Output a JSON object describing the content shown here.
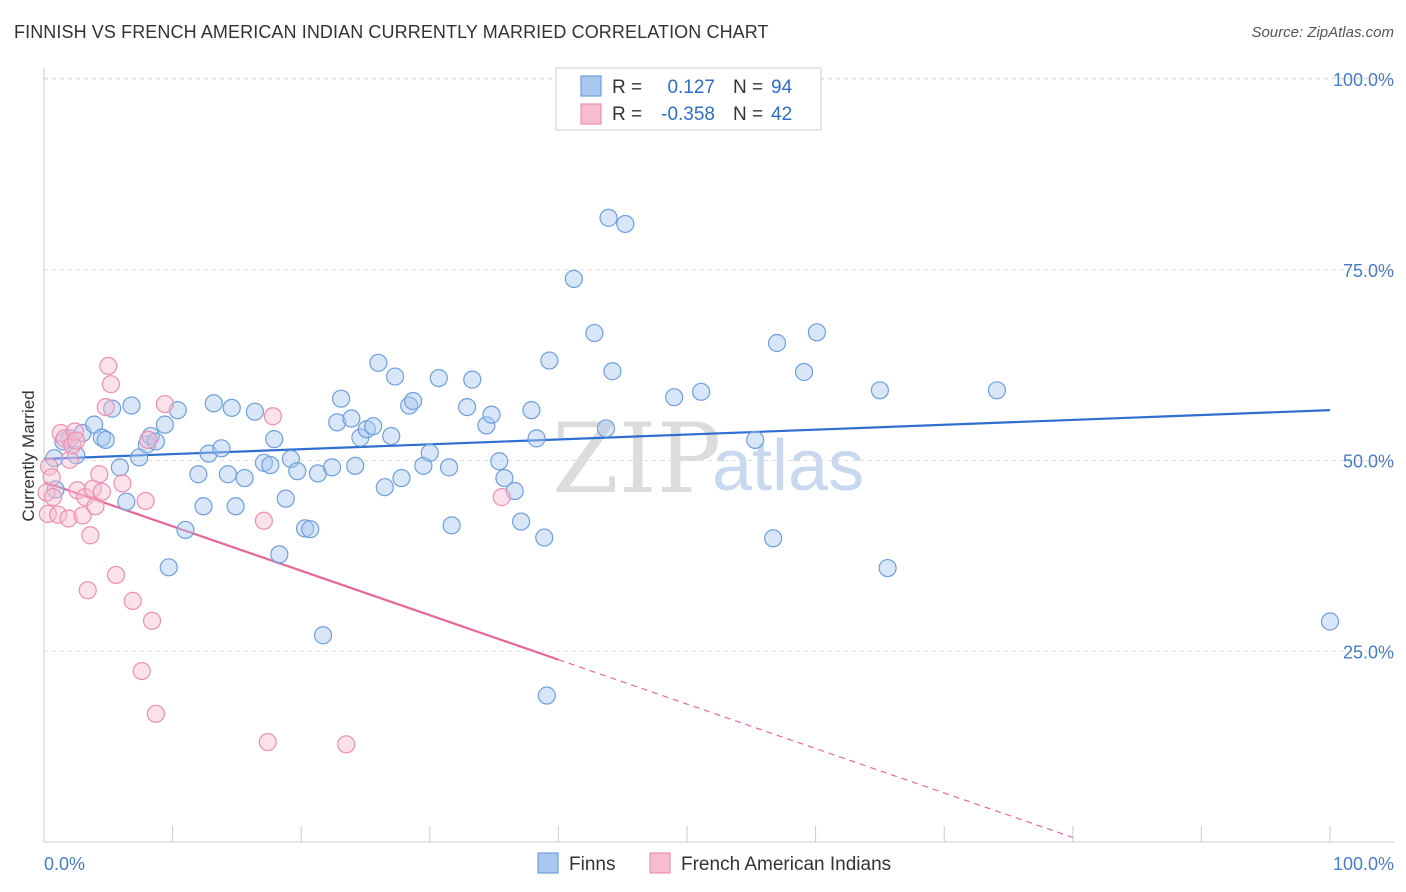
{
  "title": "FINNISH VS FRENCH AMERICAN INDIAN CURRENTLY MARRIED CORRELATION CHART",
  "source": "Source: ZipAtlas.com",
  "watermark": {
    "part1": "ZIP",
    "part2": "atlas"
  },
  "legend_box": {
    "rows": [
      {
        "r_label": "R =",
        "r_value": "0.127",
        "n_label": "N =",
        "n_value": "94"
      },
      {
        "r_label": "R =",
        "r_value": "-0.358",
        "n_label": "N =",
        "n_value": "42"
      }
    ]
  },
  "chart_data": {
    "type": "scatter",
    "xlabel": "",
    "ylabel": "Currently Married",
    "xlim": [
      0,
      100
    ],
    "ylim": [
      0,
      105
    ],
    "x_tick_labels": [
      "0.0%",
      "100.0%"
    ],
    "y_tick_labels": [
      "25.0%",
      "50.0%",
      "75.0%",
      "100.0%"
    ],
    "y_ticks": [
      25,
      50,
      75,
      100
    ],
    "grid": true,
    "legend_position": "top-center",
    "series": [
      {
        "name": "Finns",
        "color": "#a9c8f0",
        "edge": "#6f9fdc",
        "line_color": "#2f6fcf",
        "trend": {
          "x0": 0,
          "y0": 50.2,
          "x1": 100,
          "y1": 56.6
        },
        "points": [
          [
            0.8,
            50.3
          ],
          [
            0.9,
            46.2
          ],
          [
            1.5,
            52.5
          ],
          [
            2.0,
            52.9
          ],
          [
            2.5,
            50.7
          ],
          [
            3.0,
            53.6
          ],
          [
            3.9,
            54.7
          ],
          [
            4.5,
            53.0
          ],
          [
            4.8,
            52.7
          ],
          [
            5.3,
            56.8
          ],
          [
            5.9,
            49.1
          ],
          [
            6.4,
            44.6
          ],
          [
            6.8,
            57.2
          ],
          [
            7.4,
            50.4
          ],
          [
            8.0,
            52.1
          ],
          [
            8.3,
            53.2
          ],
          [
            8.7,
            52.5
          ],
          [
            9.4,
            54.7
          ],
          [
            9.7,
            36.0
          ],
          [
            10.4,
            56.6
          ],
          [
            11.0,
            40.9
          ],
          [
            12.0,
            48.2
          ],
          [
            12.4,
            44.0
          ],
          [
            12.8,
            50.9
          ],
          [
            13.2,
            57.5
          ],
          [
            13.8,
            51.6
          ],
          [
            14.3,
            48.2
          ],
          [
            14.6,
            56.9
          ],
          [
            14.9,
            44.0
          ],
          [
            15.6,
            47.7
          ],
          [
            16.4,
            56.4
          ],
          [
            17.1,
            49.7
          ],
          [
            17.6,
            49.4
          ],
          [
            17.9,
            52.8
          ],
          [
            18.3,
            37.7
          ],
          [
            18.8,
            45.0
          ],
          [
            19.2,
            50.2
          ],
          [
            19.7,
            48.6
          ],
          [
            20.3,
            41.1
          ],
          [
            20.7,
            41.0
          ],
          [
            21.3,
            48.3
          ],
          [
            21.7,
            27.1
          ],
          [
            22.4,
            49.1
          ],
          [
            22.8,
            55.0
          ],
          [
            23.1,
            58.1
          ],
          [
            23.9,
            55.5
          ],
          [
            24.2,
            49.3
          ],
          [
            24.6,
            53.0
          ],
          [
            25.1,
            54.1
          ],
          [
            25.6,
            54.5
          ],
          [
            26.0,
            62.8
          ],
          [
            26.5,
            46.5
          ],
          [
            27.0,
            53.2
          ],
          [
            27.3,
            61.0
          ],
          [
            27.8,
            47.7
          ],
          [
            28.4,
            57.2
          ],
          [
            28.7,
            57.8
          ],
          [
            29.5,
            49.3
          ],
          [
            30.0,
            51.0
          ],
          [
            30.7,
            60.8
          ],
          [
            31.5,
            49.1
          ],
          [
            31.7,
            41.5
          ],
          [
            32.9,
            57.0
          ],
          [
            33.3,
            60.6
          ],
          [
            34.4,
            54.6
          ],
          [
            34.8,
            56.0
          ],
          [
            35.4,
            49.9
          ],
          [
            35.8,
            47.7
          ],
          [
            36.6,
            46.0
          ],
          [
            37.1,
            42.0
          ],
          [
            37.9,
            56.6
          ],
          [
            38.3,
            52.9
          ],
          [
            38.9,
            39.9
          ],
          [
            39.1,
            19.2
          ],
          [
            39.3,
            63.1
          ],
          [
            41.2,
            73.8
          ],
          [
            42.8,
            66.7
          ],
          [
            43.7,
            54.2
          ],
          [
            43.9,
            81.8
          ],
          [
            44.2,
            61.7
          ],
          [
            45.2,
            81.0
          ],
          [
            49.0,
            58.3
          ],
          [
            51.1,
            59.0
          ],
          [
            55.3,
            52.7
          ],
          [
            56.7,
            39.8
          ],
          [
            57.0,
            65.4
          ],
          [
            59.1,
            61.6
          ],
          [
            60.1,
            66.8
          ],
          [
            65.0,
            59.2
          ],
          [
            65.6,
            35.9
          ],
          [
            74.1,
            59.2
          ],
          [
            100.0,
            28.9
          ]
        ]
      },
      {
        "name": "French American Indians",
        "color": "#f7bcd0",
        "edge": "#ec8fb0",
        "line_color": "#e5689a",
        "trend": {
          "x0": 0,
          "y0": 47.2,
          "x1": 40,
          "y1": 23.9
        },
        "trend_dashed": {
          "x0": 40,
          "y0": 23.9,
          "x1": 80,
          "y1": 0.6
        },
        "points": [
          [
            0.2,
            45.8
          ],
          [
            0.3,
            43.0
          ],
          [
            0.4,
            49.2
          ],
          [
            0.6,
            47.8
          ],
          [
            0.7,
            45.2
          ],
          [
            1.1,
            42.9
          ],
          [
            1.3,
            53.6
          ],
          [
            1.6,
            52.9
          ],
          [
            1.9,
            42.4
          ],
          [
            2.0,
            50.1
          ],
          [
            2.2,
            52.0
          ],
          [
            2.4,
            53.8
          ],
          [
            2.5,
            52.6
          ],
          [
            2.6,
            46.1
          ],
          [
            3.0,
            42.8
          ],
          [
            3.2,
            45.2
          ],
          [
            3.4,
            33.0
          ],
          [
            3.6,
            40.2
          ],
          [
            3.8,
            46.3
          ],
          [
            4.0,
            44.0
          ],
          [
            4.3,
            48.2
          ],
          [
            4.5,
            45.9
          ],
          [
            4.8,
            57.0
          ],
          [
            5.0,
            62.4
          ],
          [
            5.2,
            60.0
          ],
          [
            5.6,
            35.0
          ],
          [
            6.1,
            47.0
          ],
          [
            6.9,
            31.6
          ],
          [
            7.6,
            22.4
          ],
          [
            7.9,
            44.7
          ],
          [
            8.1,
            52.7
          ],
          [
            8.4,
            29.0
          ],
          [
            8.7,
            16.8
          ],
          [
            9.4,
            57.4
          ],
          [
            17.1,
            42.1
          ],
          [
            17.4,
            13.1
          ],
          [
            17.8,
            55.8
          ],
          [
            23.5,
            12.8
          ],
          [
            35.6,
            45.2
          ]
        ]
      }
    ]
  },
  "bottom_legend": {
    "items": [
      {
        "label": "Finns"
      },
      {
        "label": "French American Indians"
      }
    ]
  }
}
